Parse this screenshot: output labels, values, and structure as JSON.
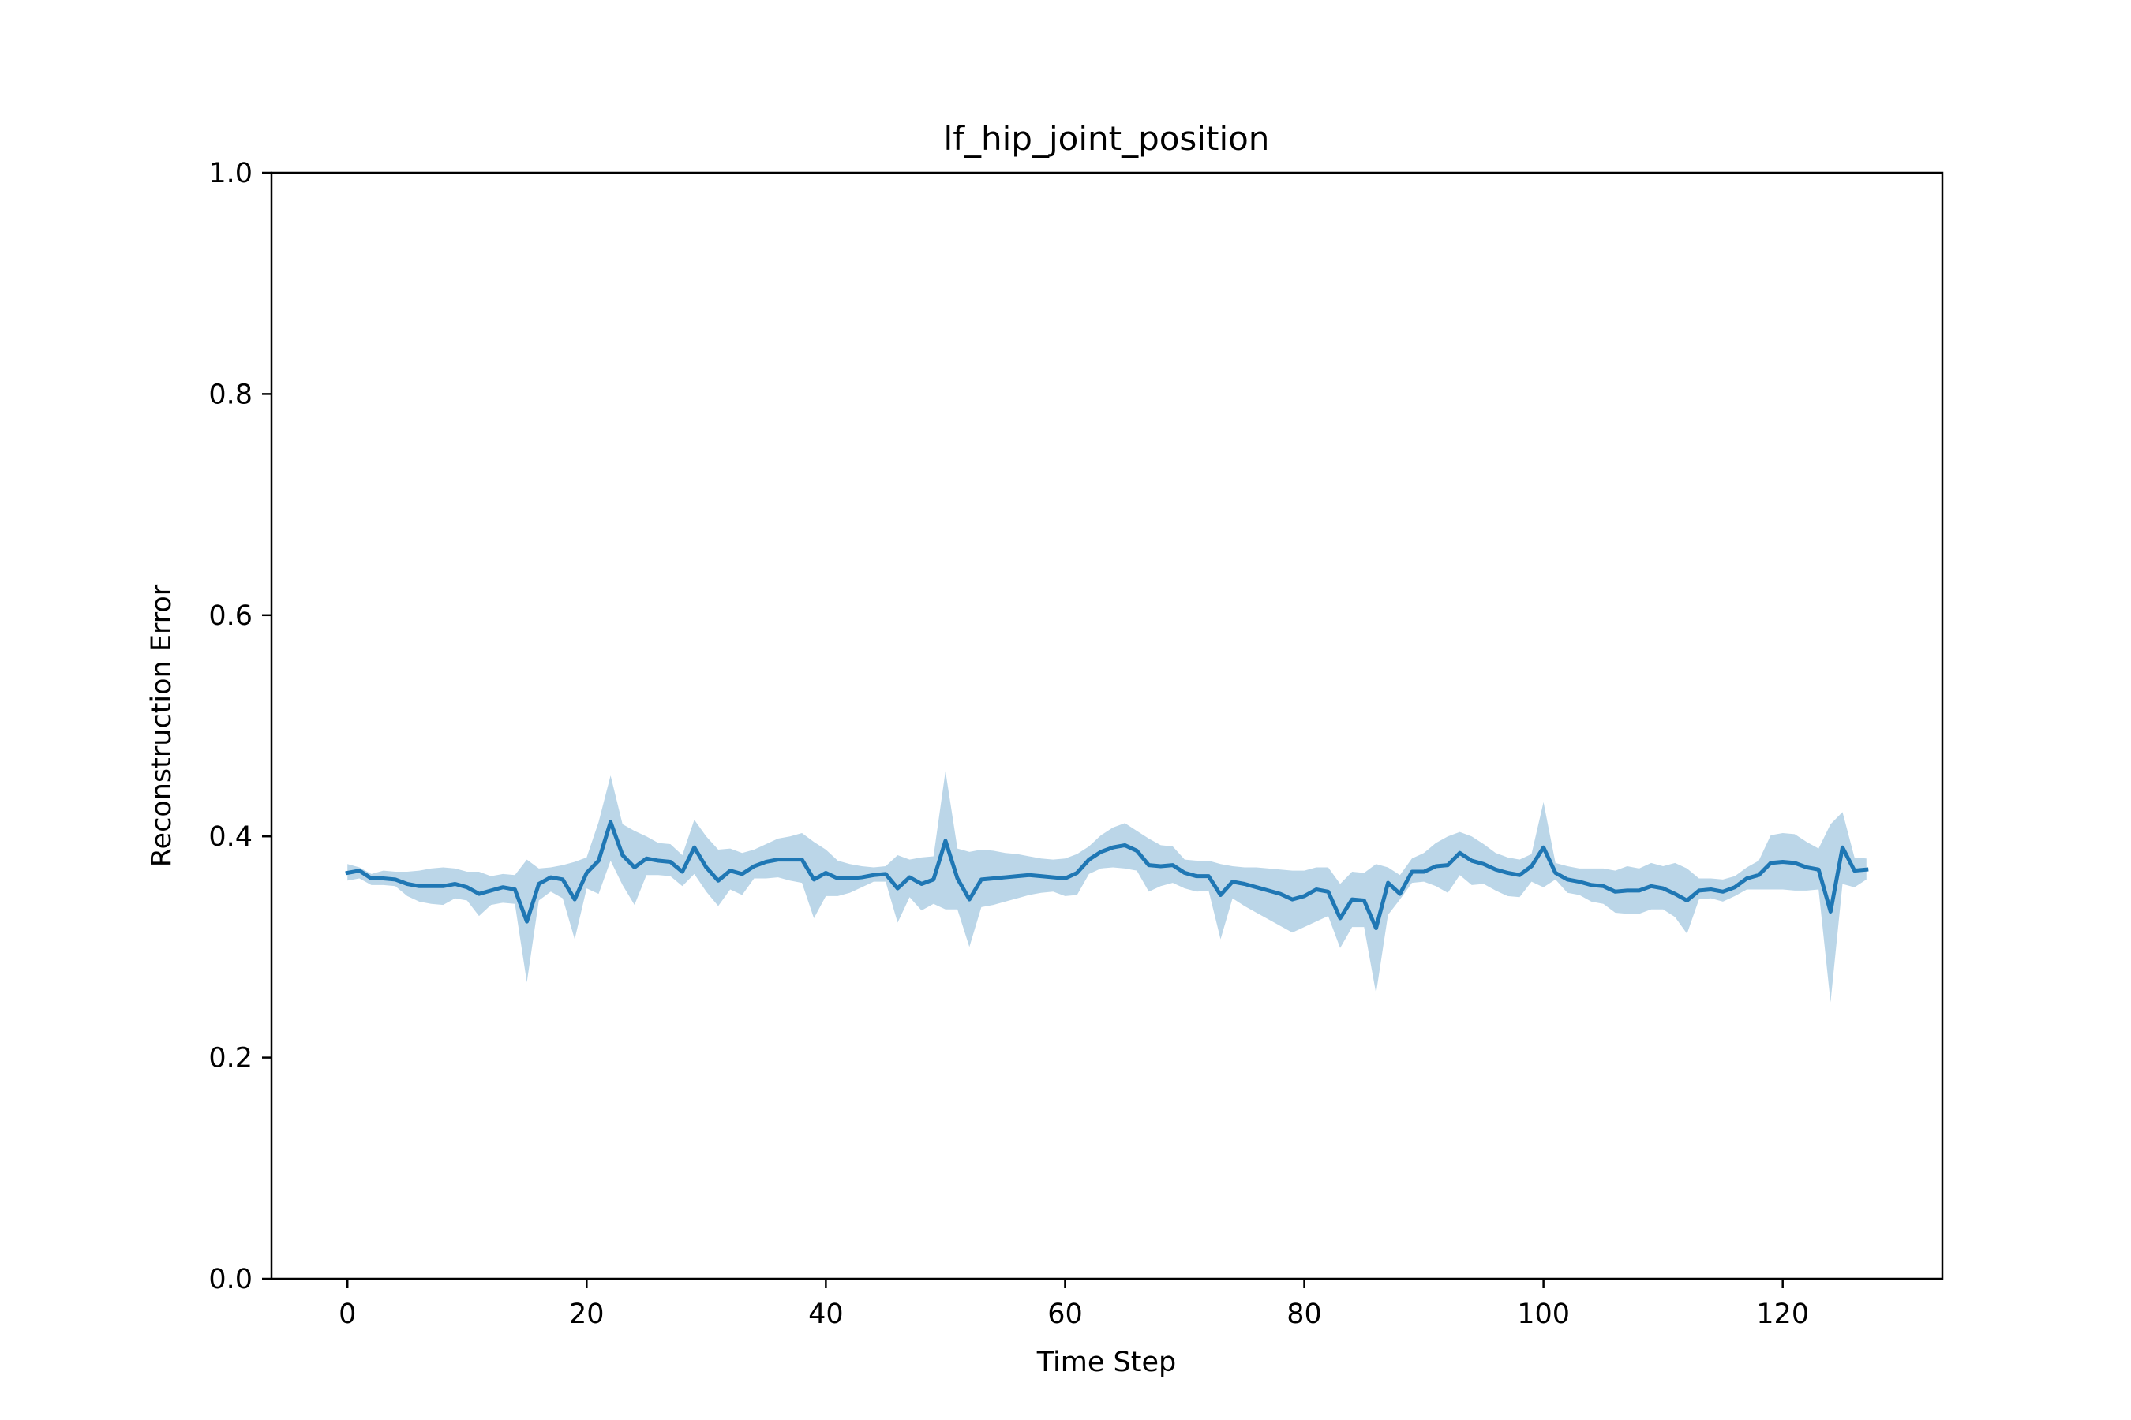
{
  "chart_data": {
    "type": "line",
    "title": "lf_hip_joint_position",
    "xlabel": "Time Step",
    "ylabel": "Reconstruction Error",
    "xlim": [
      -6.35,
      133.35
    ],
    "ylim": [
      0.0,
      1.0
    ],
    "xticks": [
      0,
      20,
      40,
      60,
      80,
      100,
      120
    ],
    "xtick_labels": [
      "0",
      "20",
      "40",
      "60",
      "80",
      "100",
      "120"
    ],
    "yticks": [
      0.0,
      0.2,
      0.4,
      0.6,
      0.8,
      1.0
    ],
    "ytick_labels": [
      "0.0",
      "0.2",
      "0.4",
      "0.6",
      "0.8",
      "1.0"
    ],
    "grid": false,
    "colors": {
      "line": "#1f77b4",
      "band": "#1f77b4",
      "band_opacity": 0.3
    },
    "series": [
      {
        "x": [
          0,
          1,
          2,
          3,
          4,
          5,
          6,
          7,
          8,
          9,
          10,
          11,
          12,
          13,
          14,
          15,
          16,
          17,
          18,
          19,
          20,
          21,
          22,
          23,
          24,
          25,
          26,
          27,
          28,
          29,
          30,
          31,
          32,
          33,
          34,
          35,
          36,
          37,
          38,
          39,
          40,
          41,
          42,
          43,
          44,
          45,
          46,
          47,
          48,
          49,
          50,
          51,
          52,
          53,
          54,
          55,
          56,
          57,
          58,
          59,
          60,
          61,
          62,
          63,
          64,
          65,
          66,
          67,
          68,
          69,
          70,
          71,
          72,
          73,
          74,
          75,
          76,
          77,
          78,
          79,
          80,
          81,
          82,
          83,
          84,
          85,
          86,
          87,
          88,
          89,
          90,
          91,
          92,
          93,
          94,
          95,
          96,
          97,
          98,
          99,
          100,
          101,
          102,
          103,
          104,
          105,
          106,
          107,
          108,
          109,
          110,
          111,
          112,
          113,
          114,
          115,
          116,
          117,
          118,
          119,
          120,
          121,
          122,
          123,
          124,
          125,
          126,
          127
        ],
        "y": [
          0.367,
          0.369,
          0.362,
          0.362,
          0.361,
          0.357,
          0.355,
          0.355,
          0.355,
          0.357,
          0.354,
          0.348,
          0.351,
          0.354,
          0.352,
          0.323,
          0.357,
          0.363,
          0.361,
          0.343,
          0.367,
          0.378,
          0.413,
          0.383,
          0.372,
          0.38,
          0.378,
          0.377,
          0.368,
          0.39,
          0.372,
          0.36,
          0.369,
          0.366,
          0.373,
          0.377,
          0.379,
          0.379,
          0.379,
          0.361,
          0.367,
          0.362,
          0.362,
          0.363,
          0.365,
          0.366,
          0.353,
          0.363,
          0.357,
          0.361,
          0.396,
          0.362,
          0.343,
          0.361,
          0.362,
          0.363,
          0.364,
          0.365,
          0.364,
          0.363,
          0.362,
          0.367,
          0.379,
          0.386,
          0.39,
          0.392,
          0.387,
          0.374,
          0.373,
          0.374,
          0.367,
          0.364,
          0.364,
          0.347,
          0.359,
          0.357,
          0.354,
          0.351,
          0.348,
          0.343,
          0.346,
          0.352,
          0.35,
          0.326,
          0.343,
          0.342,
          0.317,
          0.358,
          0.348,
          0.368,
          0.368,
          0.373,
          0.374,
          0.385,
          0.378,
          0.375,
          0.37,
          0.367,
          0.365,
          0.373,
          0.39,
          0.367,
          0.361,
          0.359,
          0.356,
          0.355,
          0.35,
          0.351,
          0.351,
          0.355,
          0.353,
          0.348,
          0.342,
          0.351,
          0.352,
          0.35,
          0.354,
          0.362,
          0.365,
          0.376,
          0.377,
          0.376,
          0.372,
          0.37,
          0.332,
          0.39,
          0.369,
          0.37
        ],
        "lower": [
          0.36,
          0.362,
          0.356,
          0.356,
          0.355,
          0.346,
          0.341,
          0.339,
          0.338,
          0.344,
          0.342,
          0.328,
          0.338,
          0.34,
          0.339,
          0.268,
          0.342,
          0.35,
          0.344,
          0.307,
          0.353,
          0.348,
          0.378,
          0.356,
          0.338,
          0.365,
          0.365,
          0.364,
          0.355,
          0.366,
          0.35,
          0.337,
          0.352,
          0.347,
          0.362,
          0.362,
          0.363,
          0.36,
          0.358,
          0.326,
          0.346,
          0.346,
          0.349,
          0.354,
          0.359,
          0.359,
          0.322,
          0.345,
          0.333,
          0.339,
          0.334,
          0.334,
          0.3,
          0.336,
          0.338,
          0.341,
          0.344,
          0.347,
          0.349,
          0.35,
          0.346,
          0.347,
          0.366,
          0.371,
          0.372,
          0.371,
          0.369,
          0.35,
          0.355,
          0.358,
          0.353,
          0.35,
          0.351,
          0.307,
          0.344,
          0.337,
          0.331,
          0.325,
          0.319,
          0.313,
          0.318,
          0.323,
          0.328,
          0.299,
          0.318,
          0.318,
          0.258,
          0.329,
          0.343,
          0.358,
          0.359,
          0.355,
          0.349,
          0.365,
          0.356,
          0.357,
          0.351,
          0.346,
          0.345,
          0.359,
          0.354,
          0.361,
          0.349,
          0.347,
          0.341,
          0.339,
          0.331,
          0.33,
          0.33,
          0.334,
          0.334,
          0.327,
          0.312,
          0.343,
          0.344,
          0.341,
          0.346,
          0.352,
          0.352,
          0.352,
          0.352,
          0.351,
          0.351,
          0.352,
          0.25,
          0.357,
          0.354,
          0.361
        ],
        "upper": [
          0.375,
          0.372,
          0.366,
          0.369,
          0.368,
          0.368,
          0.369,
          0.371,
          0.372,
          0.371,
          0.368,
          0.368,
          0.364,
          0.366,
          0.365,
          0.379,
          0.371,
          0.372,
          0.374,
          0.377,
          0.381,
          0.413,
          0.455,
          0.411,
          0.405,
          0.4,
          0.394,
          0.393,
          0.383,
          0.415,
          0.4,
          0.388,
          0.389,
          0.385,
          0.388,
          0.393,
          0.398,
          0.4,
          0.403,
          0.395,
          0.388,
          0.378,
          0.375,
          0.373,
          0.372,
          0.373,
          0.383,
          0.379,
          0.381,
          0.382,
          0.459,
          0.389,
          0.386,
          0.388,
          0.387,
          0.385,
          0.384,
          0.382,
          0.38,
          0.379,
          0.38,
          0.384,
          0.391,
          0.401,
          0.408,
          0.412,
          0.405,
          0.398,
          0.392,
          0.391,
          0.379,
          0.378,
          0.378,
          0.375,
          0.373,
          0.372,
          0.372,
          0.371,
          0.37,
          0.369,
          0.369,
          0.372,
          0.372,
          0.357,
          0.368,
          0.367,
          0.375,
          0.372,
          0.365,
          0.38,
          0.385,
          0.394,
          0.4,
          0.404,
          0.4,
          0.393,
          0.385,
          0.381,
          0.379,
          0.384,
          0.431,
          0.376,
          0.373,
          0.371,
          0.371,
          0.371,
          0.369,
          0.373,
          0.371,
          0.376,
          0.373,
          0.376,
          0.371,
          0.362,
          0.362,
          0.361,
          0.364,
          0.372,
          0.378,
          0.401,
          0.403,
          0.402,
          0.395,
          0.389,
          0.411,
          0.422,
          0.381,
          0.38
        ]
      }
    ]
  }
}
